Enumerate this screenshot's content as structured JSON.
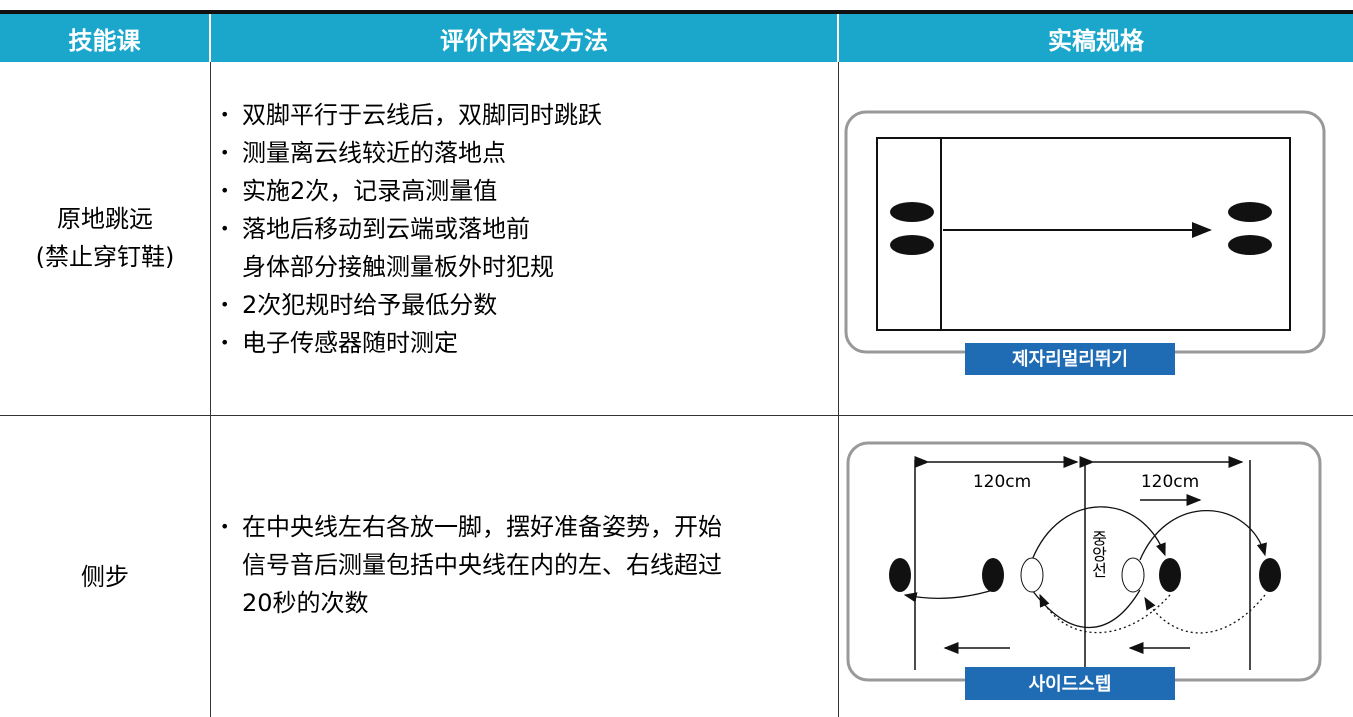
{
  "header": {
    "columns": [
      "技能课",
      "评价内容及方法",
      "实稿规格"
    ]
  },
  "rows": [
    {
      "name": [
        "原地跳远",
        "(禁止穿钉鞋)"
      ],
      "items": [
        [
          "双脚平行于云线后，双脚同时跳跃"
        ],
        [
          "测量离云线较近的落地点"
        ],
        [
          "实施2次，记录高测量值"
        ],
        [
          "落地后移动到云端或落地前",
          "身体部分接触测量板外时犯规"
        ],
        [
          "2次犯规时给予最低分数"
        ],
        [
          "电子传感器随时测定"
        ]
      ],
      "figure": {
        "caption": "제자리멀리뛰기"
      }
    },
    {
      "name": [
        "侧步"
      ],
      "items": [
        [
          "在中央线左右各放一脚，摆好准备姿势，开始",
          "信号音后测量包括中央线在内的左、右线超过",
          "20秒的次数"
        ]
      ],
      "figure": {
        "caption": "사이드스텝",
        "left_distance": "120cm",
        "right_distance": "120cm",
        "center_label": "중앙선"
      }
    }
  ]
}
